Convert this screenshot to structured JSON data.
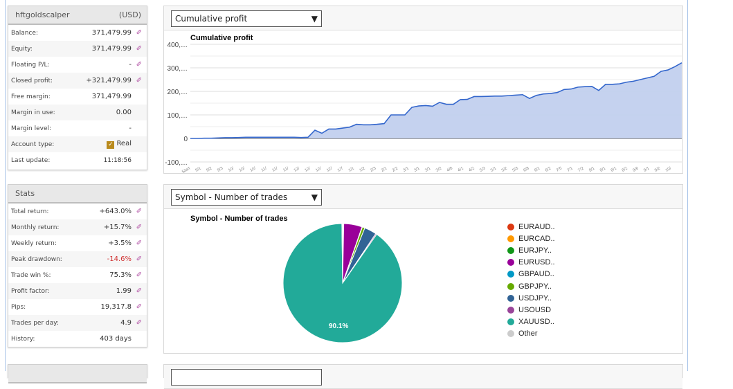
{
  "account": {
    "name": "hftgoldscalper",
    "currency": "(USD)",
    "rows": [
      {
        "label": "Balance:",
        "value": "371,479.99",
        "icon": true
      },
      {
        "label": "Equity:",
        "value": "371,479.99",
        "icon": true
      },
      {
        "label": "Floating P/L:",
        "value": "-",
        "icon": true
      },
      {
        "label": "Closed profit:",
        "value": "+321,479.99",
        "icon": true
      },
      {
        "label": "Free margin:",
        "value": "371,479.99",
        "icon": false
      },
      {
        "label": "Margin in use:",
        "value": "0.00",
        "icon": false
      },
      {
        "label": "Margin level:",
        "value": "-",
        "icon": false
      },
      {
        "label": "Account type:",
        "value": "Real",
        "icon": false,
        "checkbox": true
      },
      {
        "label": "Last update:",
        "value": "11:18:56",
        "icon": false
      }
    ]
  },
  "stats": {
    "title": "Stats",
    "rows": [
      {
        "label": "Total return:",
        "value": "+643.0%",
        "icon": true
      },
      {
        "label": "Monthly return:",
        "value": "+15.7%",
        "icon": true
      },
      {
        "label": "Weekly return:",
        "value": "+3.5%",
        "icon": true
      },
      {
        "label": "Peak drawdown:",
        "value": "-14.6%",
        "icon": true,
        "negative": true
      },
      {
        "label": "Trade win %:",
        "value": "75.3%",
        "icon": true
      },
      {
        "label": "Profit factor:",
        "value": "1.99",
        "icon": true
      },
      {
        "label": "Pips:",
        "value": "19,317.8",
        "icon": true
      },
      {
        "label": "Trades per day:",
        "value": "4.9",
        "icon": true
      },
      {
        "label": "History:",
        "value": "403 days",
        "icon": false
      }
    ]
  },
  "profit_select": "Cumulative profit",
  "pie_select": "Symbol - Number of trades",
  "chart_data": [
    {
      "type": "area",
      "title": "Cumulative profit",
      "ylim": [
        -100000,
        400000
      ],
      "yticks": [
        "400,…",
        "300,…",
        "200,…",
        "100,…",
        "0",
        "-100,…"
      ],
      "ytick_values": [
        400000,
        300000,
        200000,
        100000,
        0,
        -100000
      ],
      "xtick_labels": [
        "Start",
        "9/1",
        "9/2",
        "9/3",
        "10/",
        "10/",
        "10/",
        "11/",
        "11/",
        "11/",
        "12/",
        "12/",
        "12/",
        "12/",
        "1/7",
        "1/1",
        "1/2",
        "2/3",
        "2/1",
        "2/2",
        "3/1",
        "3/1",
        "3/1",
        "3/2",
        "4/8",
        "4/1",
        "4/2",
        "5/3",
        "5/1",
        "5/2",
        "5/3",
        "6/8",
        "6/1",
        "6/2",
        "7/5",
        "7/1",
        "7/2",
        "8/1",
        "8/1",
        "8/1",
        "8/2",
        "9/6",
        "9/1",
        "9/2",
        "10/"
      ],
      "color": "#3366cc",
      "fill": "#c2d0ee",
      "values": [
        0,
        0,
        1000,
        1000,
        2000,
        3000,
        3000,
        4000,
        5000,
        5000,
        5000,
        5000,
        5000,
        5000,
        5000,
        5000,
        4000,
        5000,
        35000,
        22000,
        40000,
        40000,
        44000,
        48000,
        60000,
        58000,
        58000,
        60000,
        63000,
        100000,
        100000,
        100000,
        132000,
        138000,
        140000,
        137000,
        153000,
        145000,
        145000,
        165000,
        166000,
        178000,
        178000,
        179000,
        180000,
        180000,
        182000,
        184000,
        186000,
        170000,
        183000,
        189000,
        191000,
        195000,
        208000,
        210000,
        218000,
        220000,
        221000,
        204000,
        230000,
        230000,
        232000,
        239000,
        243000,
        250000,
        257000,
        264000,
        285000,
        291000,
        305000,
        321480
      ]
    },
    {
      "type": "pie",
      "title": "Symbol - Number of trades",
      "slice_label": "90.1%",
      "slices": [
        {
          "name": "EURAUD..",
          "value": 0.1,
          "color": "#dc3912"
        },
        {
          "name": "EURCAD..",
          "value": 0.1,
          "color": "#ff9900"
        },
        {
          "name": "EURJPY..",
          "value": 0.1,
          "color": "#109618"
        },
        {
          "name": "EURUSD..",
          "value": 5.0,
          "color": "#990099"
        },
        {
          "name": "GBPAUD..",
          "value": 0.1,
          "color": "#0099c6"
        },
        {
          "name": "GBPJPY..",
          "value": 0.7,
          "color": "#66aa00"
        },
        {
          "name": "USDJPY..",
          "value": 3.3,
          "color": "#316395"
        },
        {
          "name": "USOUSD",
          "value": 0.3,
          "color": "#994499"
        },
        {
          "name": "XAUUSD..",
          "value": 90.1,
          "color": "#22aa99"
        },
        {
          "name": "Other",
          "value": 0.2,
          "color": "#cccccc"
        }
      ]
    }
  ]
}
